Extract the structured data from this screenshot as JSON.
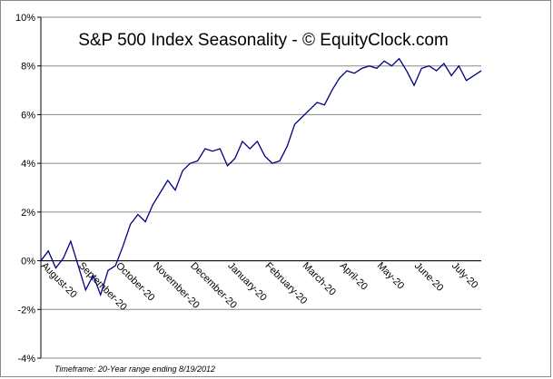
{
  "chart_data": {
    "type": "line",
    "title": "S&P 500 Index Seasonality - © EquityClock.com",
    "footnote": "Timeframe: 20-Year range ending 8/19/2012",
    "categories": [
      "August-20",
      null,
      null,
      null,
      null,
      "September-20",
      null,
      null,
      null,
      null,
      "October-20",
      null,
      null,
      null,
      null,
      "November-20",
      null,
      null,
      null,
      null,
      "December-20",
      null,
      null,
      null,
      null,
      "January-20",
      null,
      null,
      null,
      null,
      "February-20",
      null,
      null,
      null,
      null,
      "March-20",
      null,
      null,
      null,
      null,
      "April-20",
      null,
      null,
      null,
      null,
      "May-20",
      null,
      null,
      null,
      null,
      "June-20",
      null,
      null,
      null,
      null,
      "July-20",
      null,
      null,
      null,
      null
    ],
    "series": [
      {
        "name": "S&P 500",
        "color": "#000080",
        "values": [
          0,
          0.4,
          -0.3,
          0.1,
          0.8,
          -0.2,
          -1.2,
          -0.6,
          -1.4,
          -0.4,
          -0.2,
          0.6,
          1.5,
          1.9,
          1.6,
          2.3,
          2.8,
          3.3,
          2.9,
          3.7,
          4.0,
          4.1,
          4.6,
          4.5,
          4.6,
          3.9,
          4.2,
          4.9,
          4.6,
          4.9,
          4.3,
          4.0,
          4.1,
          4.7,
          5.6,
          5.9,
          6.2,
          6.5,
          6.4,
          7.0,
          7.5,
          7.8,
          7.7,
          7.9,
          8.0,
          7.9,
          8.2,
          8.0,
          8.3,
          7.8,
          7.2,
          7.9,
          8.0,
          7.8,
          8.1,
          7.6,
          8.0,
          7.4,
          7.6,
          7.8
        ]
      }
    ],
    "ylim": [
      -4,
      10
    ],
    "yticks": [
      {
        "value": -4,
        "label": "-4%"
      },
      {
        "value": -2,
        "label": "-2%"
      },
      {
        "value": 0,
        "label": "0%"
      },
      {
        "value": 2,
        "label": "2%"
      },
      {
        "value": 4,
        "label": "4%"
      },
      {
        "value": 6,
        "label": "6%"
      },
      {
        "value": 8,
        "label": "8%"
      },
      {
        "value": 10,
        "label": "10%"
      }
    ],
    "grid": true
  }
}
